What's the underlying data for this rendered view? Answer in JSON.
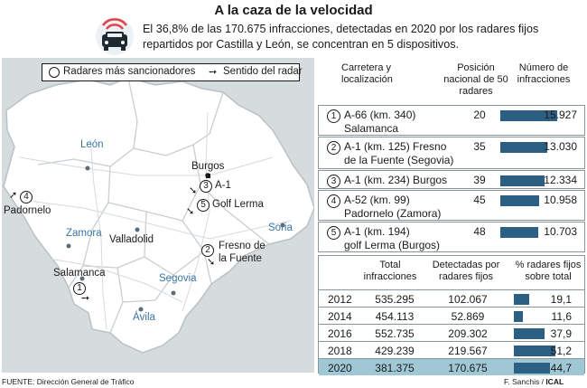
{
  "header": {
    "title": "A la caza de la velocidad",
    "subtitle": "El 36,8% de las 170.675 infracciones, detectadas en 2020 por los radares fijos repartidos por Castilla y León, se concentran en 5 dispositivos."
  },
  "legend": {
    "radar_label": "Radares más sancionadores",
    "direction_label": "Sentido del radar"
  },
  "map": {
    "provinces": [
      "León",
      "Burgos",
      "Zamora",
      "Valladolid",
      "Soria",
      "Salamanca",
      "Segovia",
      "Ávila"
    ],
    "markers": [
      {
        "num": "1",
        "label": "Salamanca"
      },
      {
        "num": "2",
        "label": "Fresno de la Fuente"
      },
      {
        "num": "3",
        "label": "A-1"
      },
      {
        "num": "4",
        "label": "Padornelo"
      },
      {
        "num": "5",
        "label": "Golf Lerma"
      }
    ],
    "burgos_city": "Burgos"
  },
  "chart_data": [
    {
      "type": "bar",
      "headers": [
        "Carretera y localización",
        "Posición nacional de 50 radares",
        "Número de infracciones"
      ],
      "categories": [
        "A-66 (km. 340) Salamanca",
        "A-1 (km. 125) Fresno de la Fuente (Segovia)",
        "A-1 (km. 234) Burgos",
        "A-52 (km. 99) Padornelo (Zamora)",
        "A-1 (km. 194) golf Lerma (Burgos)"
      ],
      "rows": [
        {
          "num": "1",
          "line1": "A-66 (km. 340)",
          "line2": "Salamanca",
          "position": 20,
          "value": 15927,
          "value_label": "15.927"
        },
        {
          "num": "2",
          "line1": "A-1 (km. 125) Fresno",
          "line2": "de la Fuente (Segovia)",
          "position": 35,
          "value": 13030,
          "value_label": "13.030"
        },
        {
          "num": "3",
          "line1": "A-1 (km. 234) Burgos",
          "line2": "",
          "position": 39,
          "value": 12334,
          "value_label": "12.334"
        },
        {
          "num": "4",
          "line1": "A-52 (km. 99)",
          "line2": "Padornelo (Zamora)",
          "position": 45,
          "value": 10958,
          "value_label": "10.958"
        },
        {
          "num": "5",
          "line1": "A-1 (km. 194)",
          "line2": "golf Lerma (Burgos)",
          "position": 48,
          "value": 10703,
          "value_label": "10.703"
        }
      ],
      "values": [
        15927,
        13030,
        12334,
        10958,
        10703
      ],
      "xlim": [
        0,
        15927
      ],
      "color": "#2c5f84"
    },
    {
      "type": "bar",
      "headers": [
        "",
        "Total infracciones",
        "Detectadas por radares fijos",
        "% radares fijos sobre total"
      ],
      "categories": [
        "2012",
        "2014",
        "2016",
        "2018",
        "2020"
      ],
      "rows": [
        {
          "year": "2012",
          "total": "535.295",
          "fixed": "102.067",
          "pct": 19.1,
          "pct_label": "19,1"
        },
        {
          "year": "2014",
          "total": "454.113",
          "fixed": "52.869",
          "pct": 11.6,
          "pct_label": "11,6"
        },
        {
          "year": "2016",
          "total": "552.735",
          "fixed": "209.302",
          "pct": 37.9,
          "pct_label": "37,9"
        },
        {
          "year": "2018",
          "total": "429.239",
          "fixed": "219.567",
          "pct": 51.2,
          "pct_label": "51,2"
        },
        {
          "year": "2020",
          "total": "381.375",
          "fixed": "170.675",
          "pct": 44.7,
          "pct_label": "44,7"
        }
      ],
      "values": [
        19.1,
        11.6,
        37.9,
        51.2,
        44.7
      ],
      "xlim": [
        0,
        51.2
      ],
      "color": "#2c5f84",
      "highlight": "2020"
    }
  ],
  "footer": {
    "source": "FUENTE: Dirección General de Tráfico",
    "credit": "F. Sanchis /",
    "agency": "ICAL"
  },
  "colors": {
    "bar": "#2c5f84",
    "highlight": "#9fc7d4",
    "map_bg": "#d6dbde",
    "region": "#ffffff",
    "province_label": "#3a74a6",
    "alert_icon": "#e0434a"
  }
}
